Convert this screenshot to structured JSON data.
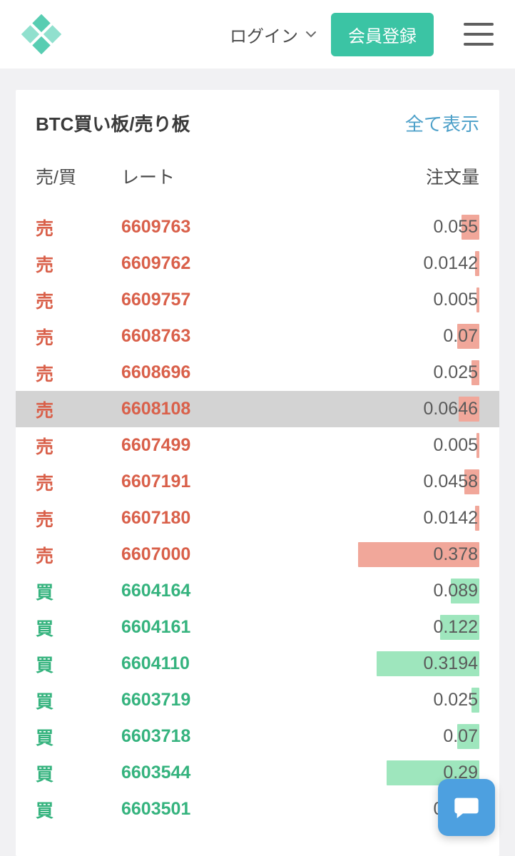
{
  "header": {
    "login_label": "ログイン",
    "signup_label": "会員登録"
  },
  "orderbook": {
    "title": "BTC買い板/売り板",
    "show_all_label": "全て表示",
    "columns": {
      "side": "売/買",
      "rate": "レート",
      "amount": "注文量"
    },
    "sell_label": "売",
    "buy_label": "買",
    "colors": {
      "sell_text": "#d9604a",
      "buy_text": "#35b37e",
      "sell_bar": "#f1a79a",
      "buy_bar": "#9ee6bd",
      "highlight_bg": "#d3d3d3"
    },
    "max_amount_for_bar": 0.4,
    "rows": [
      {
        "side": "sell",
        "rate": "6609763",
        "amount": "0.055",
        "amount_num": 0.055,
        "highlighted": false
      },
      {
        "side": "sell",
        "rate": "6609762",
        "amount": "0.0142",
        "amount_num": 0.0142,
        "highlighted": false
      },
      {
        "side": "sell",
        "rate": "6609757",
        "amount": "0.005",
        "amount_num": 0.005,
        "highlighted": false
      },
      {
        "side": "sell",
        "rate": "6608763",
        "amount": "0.07",
        "amount_num": 0.07,
        "highlighted": false
      },
      {
        "side": "sell",
        "rate": "6608696",
        "amount": "0.025",
        "amount_num": 0.025,
        "highlighted": false
      },
      {
        "side": "sell",
        "rate": "6608108",
        "amount": "0.0646",
        "amount_num": 0.0646,
        "highlighted": true
      },
      {
        "side": "sell",
        "rate": "6607499",
        "amount": "0.005",
        "amount_num": 0.005,
        "highlighted": false
      },
      {
        "side": "sell",
        "rate": "6607191",
        "amount": "0.0458",
        "amount_num": 0.0458,
        "highlighted": false
      },
      {
        "side": "sell",
        "rate": "6607180",
        "amount": "0.0142",
        "amount_num": 0.0142,
        "highlighted": false
      },
      {
        "side": "sell",
        "rate": "6607000",
        "amount": "0.378",
        "amount_num": 0.378,
        "highlighted": false
      },
      {
        "side": "buy",
        "rate": "6604164",
        "amount": "0.089",
        "amount_num": 0.089,
        "highlighted": false
      },
      {
        "side": "buy",
        "rate": "6604161",
        "amount": "0.122",
        "amount_num": 0.122,
        "highlighted": false
      },
      {
        "side": "buy",
        "rate": "6604110",
        "amount": "0.3194",
        "amount_num": 0.3194,
        "highlighted": false
      },
      {
        "side": "buy",
        "rate": "6603719",
        "amount": "0.025",
        "amount_num": 0.025,
        "highlighted": false
      },
      {
        "side": "buy",
        "rate": "6603718",
        "amount": "0.07",
        "amount_num": 0.07,
        "highlighted": false
      },
      {
        "side": "buy",
        "rate": "6603544",
        "amount": "0.29",
        "amount_num": 0.29,
        "highlighted": false
      },
      {
        "side": "buy",
        "rate": "6603501",
        "amount": "0.025",
        "amount_num": 0.025,
        "highlighted": false
      }
    ]
  }
}
